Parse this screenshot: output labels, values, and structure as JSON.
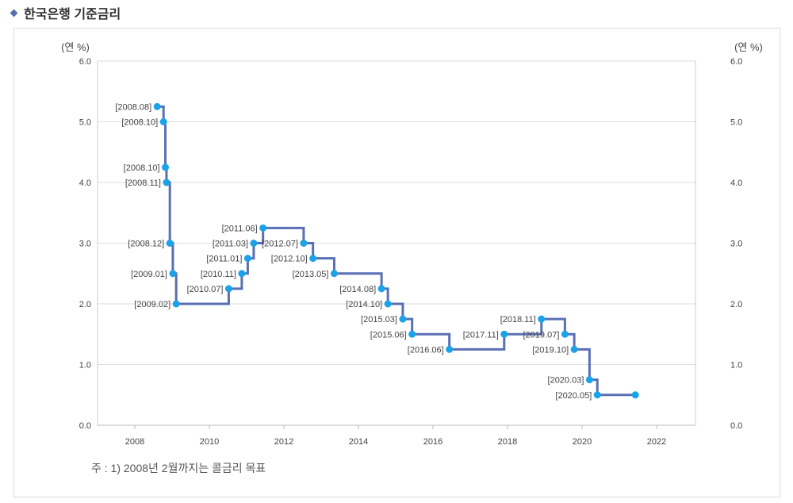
{
  "title": "한국은행 기준금리",
  "note": "주 : 1) 2008년 2월까지는 콜금리 목표",
  "chart_data": {
    "type": "line",
    "step": true,
    "title": "한국은행 기준금리",
    "ylabel_left": "(연 %)",
    "ylabel_right": "(연 %)",
    "ylim": [
      0,
      6
    ],
    "yticks": [
      "0.0",
      "1.0",
      "2.0",
      "3.0",
      "4.0",
      "5.0",
      "6.0"
    ],
    "xlim": [
      2007,
      2023
    ],
    "xticks": [
      "2008",
      "2010",
      "2012",
      "2014",
      "2016",
      "2018",
      "2020",
      "2022"
    ],
    "grid": true,
    "line_color": "#5a6fb4",
    "point_color": "#1aa3e8",
    "points": [
      {
        "x": 2008.6,
        "y": 5.25,
        "label": "[2008.08]"
      },
      {
        "x": 2008.77,
        "y": 5.0,
        "label": "[2008.10]"
      },
      {
        "x": 2008.82,
        "y": 4.25,
        "label": "[2008.10]"
      },
      {
        "x": 2008.85,
        "y": 4.0,
        "label": "[2008.11]"
      },
      {
        "x": 2008.94,
        "y": 3.0,
        "label": "[2008.12]"
      },
      {
        "x": 2009.02,
        "y": 2.5,
        "label": "[2009.01]"
      },
      {
        "x": 2009.11,
        "y": 2.0,
        "label": "[2009.02]"
      },
      {
        "x": 2010.52,
        "y": 2.25,
        "label": "[2010.07]"
      },
      {
        "x": 2010.87,
        "y": 2.5,
        "label": "[2010.11]"
      },
      {
        "x": 2011.03,
        "y": 2.75,
        "label": "[2011.01]"
      },
      {
        "x": 2011.19,
        "y": 3.0,
        "label": "[2011.03]"
      },
      {
        "x": 2011.44,
        "y": 3.25,
        "label": "[2011.06]"
      },
      {
        "x": 2012.53,
        "y": 3.0,
        "label": "[2012.07]"
      },
      {
        "x": 2012.78,
        "y": 2.75,
        "label": "[2012.10]"
      },
      {
        "x": 2013.35,
        "y": 2.5,
        "label": "[2013.05]"
      },
      {
        "x": 2014.62,
        "y": 2.25,
        "label": "[2014.08]"
      },
      {
        "x": 2014.79,
        "y": 2.0,
        "label": "[2014.10]"
      },
      {
        "x": 2015.19,
        "y": 1.75,
        "label": "[2015.03]"
      },
      {
        "x": 2015.44,
        "y": 1.5,
        "label": "[2015.06]"
      },
      {
        "x": 2016.44,
        "y": 1.25,
        "label": "[2016.06]"
      },
      {
        "x": 2017.91,
        "y": 1.5,
        "label": "[2017.11]"
      },
      {
        "x": 2018.91,
        "y": 1.75,
        "label": "[2018.11]"
      },
      {
        "x": 2019.54,
        "y": 1.5,
        "label": "[2019.07]"
      },
      {
        "x": 2019.79,
        "y": 1.25,
        "label": "[2019.10]"
      },
      {
        "x": 2020.2,
        "y": 0.75,
        "label": "[2020.03]"
      },
      {
        "x": 2020.41,
        "y": 0.5,
        "label": "[2020.05]"
      },
      {
        "x": 2021.43,
        "y": 0.5,
        "label": ""
      }
    ]
  }
}
